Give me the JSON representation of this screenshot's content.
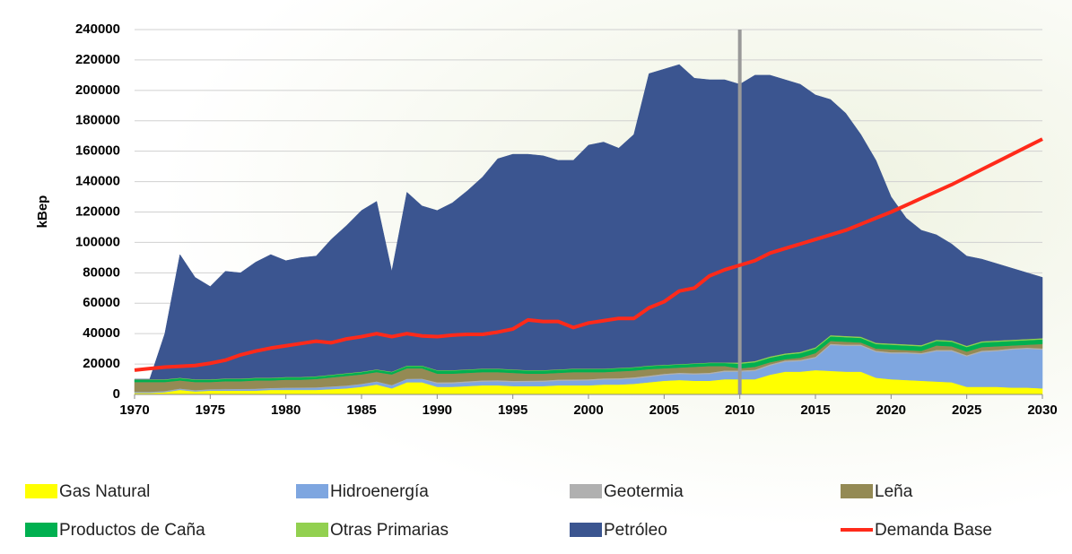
{
  "chart_data": {
    "type": "stacked-area-line",
    "y_label": "kBep",
    "x": [
      1970,
      1971,
      1972,
      1973,
      1974,
      1975,
      1976,
      1977,
      1978,
      1979,
      1980,
      1981,
      1982,
      1983,
      1984,
      1985,
      1986,
      1987,
      1988,
      1989,
      1990,
      1991,
      1992,
      1993,
      1994,
      1995,
      1996,
      1997,
      1998,
      1999,
      2000,
      2001,
      2002,
      2003,
      2004,
      2005,
      2006,
      2007,
      2008,
      2009,
      2010,
      2011,
      2012,
      2013,
      2014,
      2015,
      2016,
      2017,
      2018,
      2019,
      2020,
      2021,
      2022,
      2023,
      2024,
      2025,
      2026,
      2027,
      2028,
      2029,
      2030
    ],
    "xlim": [
      1970,
      2030
    ],
    "xticks": [
      1970,
      1975,
      1980,
      1985,
      1990,
      1995,
      2000,
      2005,
      2010,
      2015,
      2020,
      2025,
      2030
    ],
    "ylim": [
      0,
      240000
    ],
    "yticks": [
      0,
      20000,
      40000,
      60000,
      80000,
      100000,
      120000,
      140000,
      160000,
      180000,
      200000,
      220000,
      240000
    ],
    "reference_line_x": 2010,
    "series": [
      {
        "name": "Gas Natural",
        "color": "#ffff00",
        "kind": "area",
        "values": [
          1000,
          1000,
          1500,
          3000,
          2000,
          2500,
          2500,
          2500,
          2500,
          3000,
          3000,
          3000,
          3000,
          3500,
          4000,
          5000,
          6500,
          4000,
          8000,
          8000,
          5000,
          5000,
          5500,
          6000,
          6000,
          5500,
          5500,
          5500,
          6000,
          6000,
          6000,
          6500,
          6500,
          7000,
          8000,
          9000,
          9500,
          9000,
          9000,
          10000,
          10000,
          10000,
          13000,
          15000,
          15000,
          16000,
          15500,
          15000,
          15000,
          11000,
          10000,
          9500,
          9000,
          8500,
          8000,
          5000,
          5000,
          5000,
          4500,
          4500,
          4000
        ]
      },
      {
        "name": "Hidroenergía",
        "color": "#7ea6e0",
        "kind": "area",
        "values": [
          500,
          500,
          500,
          600,
          600,
          700,
          800,
          900,
          1000,
          1000,
          1200,
          1300,
          1400,
          1500,
          1600,
          1700,
          1800,
          1900,
          2000,
          2100,
          2200,
          2300,
          2400,
          2500,
          2600,
          2700,
          2800,
          2900,
          3000,
          3100,
          3200,
          3300,
          3400,
          3500,
          3600,
          3800,
          4000,
          4200,
          4500,
          5000,
          5000,
          5500,
          6000,
          6500,
          7000,
          8000,
          17000,
          17000,
          17000,
          17000,
          17000,
          17500,
          17500,
          20000,
          20500,
          20000,
          23000,
          23500,
          25000,
          25500,
          25500
        ]
      },
      {
        "name": "Geotermia",
        "color": "#b0b0b0",
        "kind": "area",
        "values": [
          300,
          300,
          300,
          300,
          300,
          300,
          300,
          300,
          300,
          300,
          300,
          300,
          300,
          300,
          300,
          300,
          300,
          300,
          300,
          300,
          800,
          800,
          800,
          800,
          800,
          800,
          800,
          800,
          800,
          800,
          800,
          800,
          800,
          800,
          800,
          800,
          800,
          800,
          800,
          800,
          800,
          800,
          800,
          800,
          800,
          800,
          800,
          800,
          800,
          800,
          800,
          800,
          800,
          800,
          800,
          800,
          800,
          800,
          800,
          800,
          800
        ]
      },
      {
        "name": "Leña",
        "color": "#948a54",
        "kind": "area",
        "values": [
          6400,
          6400,
          5900,
          5300,
          5300,
          4700,
          5100,
          5000,
          5400,
          4900,
          5200,
          5100,
          5500,
          5900,
          6300,
          6200,
          6100,
          7000,
          6900,
          6800,
          5700,
          5600,
          5500,
          5400,
          5300,
          5200,
          4600,
          4500,
          4400,
          4800,
          4700,
          4100,
          4500,
          4400,
          4300,
          3600,
          3400,
          4200,
          4400,
          2900,
          1400,
          1900,
          1400,
          900,
          1400,
          2400,
          1900,
          1900,
          1400,
          1400,
          1900,
          1400,
          1400,
          2900,
          2400,
          2400,
          2400,
          2400,
          1900,
          1900,
          2900
        ]
      },
      {
        "name": "Productos de Caña",
        "color": "#00b050",
        "kind": "area",
        "values": [
          1500,
          1500,
          1500,
          1500,
          1500,
          1500,
          1500,
          1500,
          1500,
          1500,
          1500,
          1500,
          1500,
          1500,
          1500,
          1500,
          1500,
          1500,
          1500,
          1500,
          2000,
          2000,
          2000,
          2000,
          2000,
          2000,
          2000,
          2000,
          2000,
          2000,
          2000,
          2000,
          2000,
          2000,
          2000,
          2000,
          2000,
          2000,
          2000,
          2000,
          3000,
          3000,
          3000,
          3000,
          3000,
          3000,
          3000,
          3000,
          3000,
          3000,
          3000,
          3000,
          3000,
          3000,
          3000,
          3000,
          3000,
          3000,
          3000,
          3000,
          3000
        ]
      },
      {
        "name": "Otras Primarias",
        "color": "#92d050",
        "kind": "area",
        "values": [
          300,
          300,
          300,
          300,
          300,
          300,
          300,
          300,
          300,
          300,
          300,
          300,
          300,
          300,
          300,
          300,
          300,
          300,
          300,
          300,
          300,
          300,
          300,
          300,
          300,
          300,
          300,
          300,
          300,
          300,
          300,
          300,
          300,
          300,
          300,
          300,
          300,
          300,
          300,
          300,
          800,
          800,
          800,
          800,
          800,
          800,
          800,
          800,
          800,
          800,
          800,
          800,
          800,
          800,
          800,
          800,
          800,
          800,
          800,
          800,
          800
        ]
      },
      {
        "name": "Petróleo",
        "color": "#3b5590",
        "kind": "area",
        "values": [
          0,
          0,
          30000,
          81000,
          67000,
          61000,
          70500,
          69500,
          76000,
          81000,
          76500,
          78500,
          79000,
          89000,
          97000,
          106000,
          110500,
          66000,
          114000,
          105000,
          105000,
          110000,
          117500,
          126000,
          138000,
          141500,
          142000,
          141000,
          137500,
          137000,
          147000,
          149000,
          144500,
          153000,
          192000,
          194500,
          197000,
          187500,
          186000,
          186000,
          183000,
          188000,
          185000,
          180000,
          176000,
          166000,
          155000,
          146500,
          133000,
          120000,
          96500,
          83000,
          75500,
          69000,
          63500,
          59000,
          54000,
          50500,
          47000,
          43500,
          40000
        ]
      },
      {
        "name": "Demanda Base",
        "color": "#ff2a1a",
        "kind": "line",
        "values": [
          16000,
          17000,
          18000,
          18500,
          19000,
          20500,
          22500,
          26000,
          28500,
          30500,
          32000,
          33500,
          35000,
          34000,
          36500,
          38000,
          40000,
          38000,
          40000,
          38500,
          38000,
          39000,
          39500,
          39500,
          41000,
          43000,
          49000,
          48000,
          48000,
          44000,
          47000,
          48500,
          50000,
          50000,
          57000,
          61000,
          68000,
          70000,
          78000,
          82000,
          85000,
          88000,
          93000,
          96000,
          99000,
          102000,
          105000,
          108000,
          112000,
          116000,
          120000,
          124500,
          129000,
          133500,
          138000,
          143000,
          148000,
          153000,
          158000,
          163000,
          168000
        ]
      }
    ]
  }
}
